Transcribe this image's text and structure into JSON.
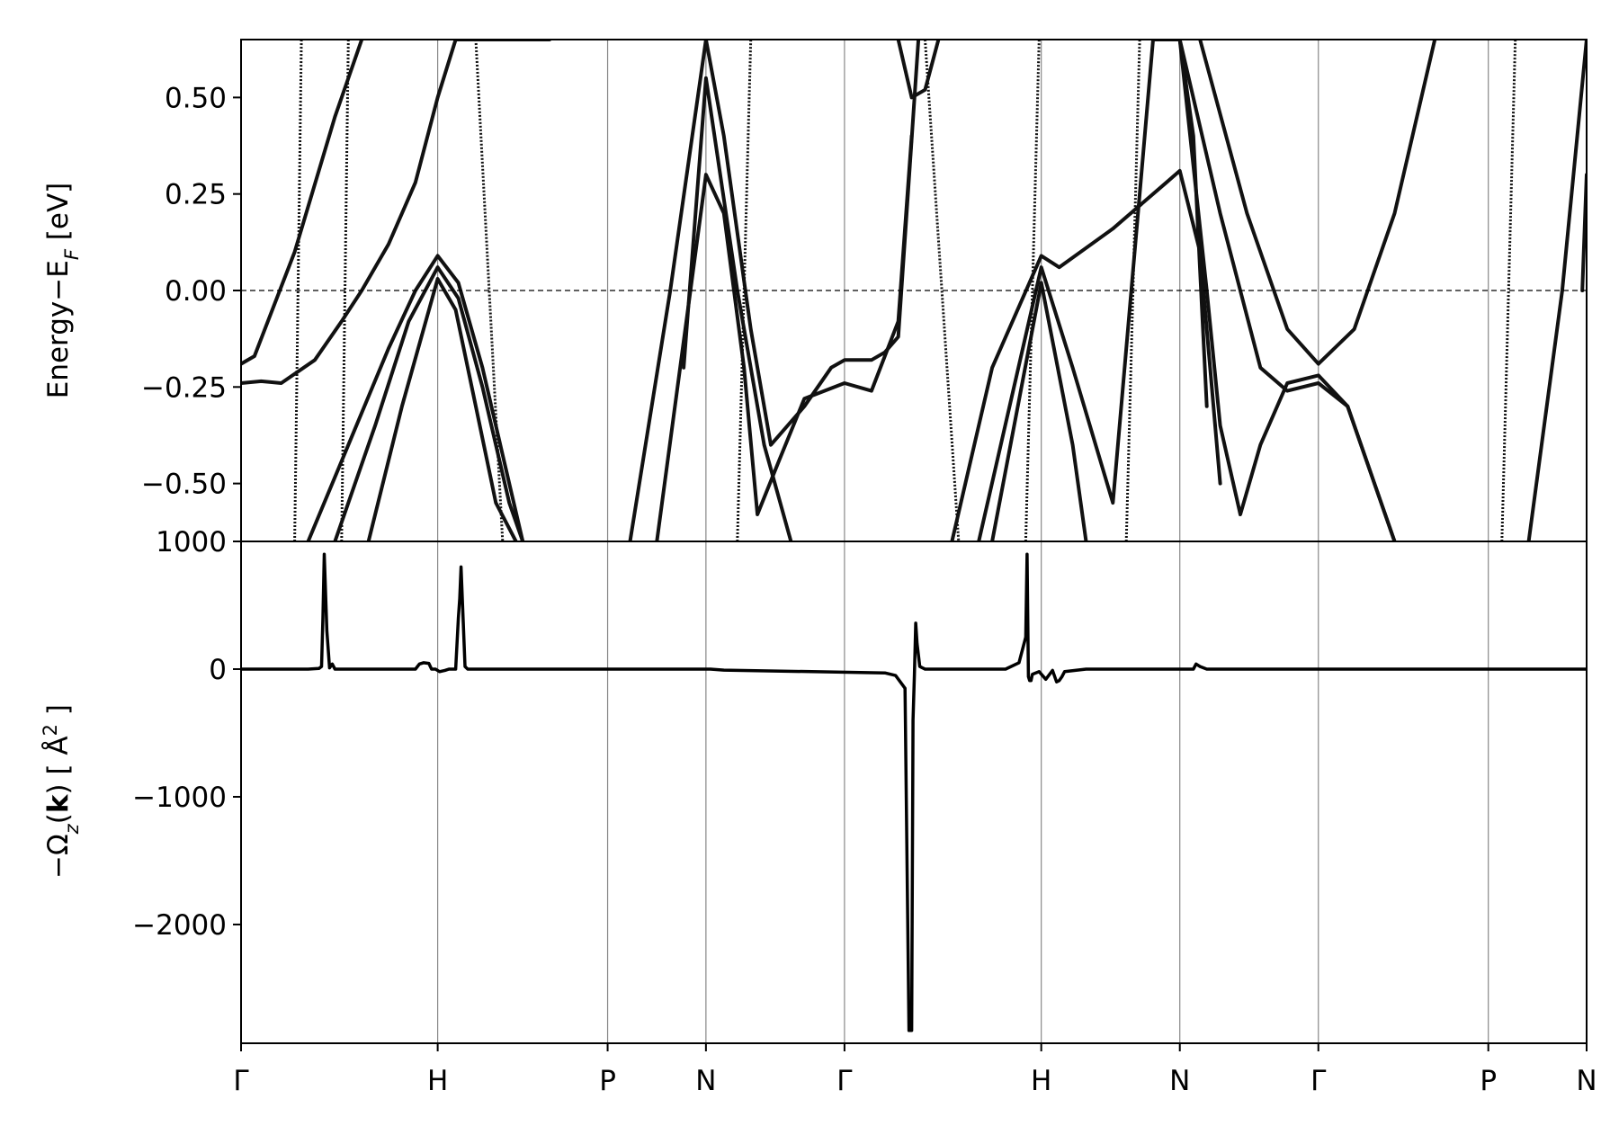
{
  "chart_data": [
    {
      "type": "line",
      "panel": "top",
      "ylabel_main": "Energy−E",
      "ylabel_sub": "F",
      "ylabel_unit": " [eV]",
      "ylim": [
        -0.65,
        0.65
      ],
      "yticks": [
        "0.50",
        "0.25",
        "0.00",
        "−0.25",
        "−0.50"
      ],
      "ytick_values": [
        0.5,
        0.25,
        0.0,
        -0.25,
        -0.5
      ],
      "fermi_level": 0.0,
      "x_tick_positions": [
        0,
        1.466,
        2.733,
        3.466,
        4.499,
        5.966,
        6.999,
        8.032,
        9.299,
        10.032
      ],
      "xlim": [
        0,
        10.032
      ],
      "grid": "vertical lines at high-symmetry points",
      "color": "#111111",
      "series": [
        {
          "x": [
            0,
            0.15,
            0.3,
            0.55,
            0.75,
            0.9,
            1.1,
            1.3,
            1.466,
            1.6,
            1.75,
            1.95,
            2.2,
            2.3
          ],
          "y": [
            -0.24,
            -0.235,
            -0.24,
            -0.18,
            -0.08,
            0.0,
            0.12,
            0.28,
            0.5,
            0.65,
            0.65,
            0.65,
            0.65,
            0.65
          ]
        },
        {
          "x": [
            0,
            0.1,
            0.4,
            0.7,
            0.9
          ],
          "y": [
            -0.19,
            -0.17,
            0.1,
            0.45,
            0.65
          ]
        },
        {
          "x": [
            0.5,
            0.8,
            1.1,
            1.3,
            1.466,
            1.62,
            1.8,
            2.0,
            2.1
          ],
          "y": [
            -0.65,
            -0.4,
            -0.15,
            0.0,
            0.09,
            0.02,
            -0.2,
            -0.5,
            -0.65
          ]
        },
        {
          "x": [
            0.7,
            1.0,
            1.25,
            1.466,
            1.62,
            1.8,
            2.0,
            2.1
          ],
          "y": [
            -0.65,
            -0.35,
            -0.08,
            0.06,
            -0.02,
            -0.25,
            -0.55,
            -0.65
          ]
        },
        {
          "x": [
            0.95,
            1.2,
            1.466,
            1.6,
            1.75,
            1.9,
            2.05
          ],
          "y": [
            -0.65,
            -0.3,
            0.03,
            -0.05,
            -0.3,
            -0.55,
            -0.65
          ]
        },
        {
          "x": [
            2.9,
            3.2,
            3.466,
            3.6,
            3.8,
            3.95,
            4.2,
            4.4,
            4.5,
            4.7,
            4.8,
            4.9,
            5.05
          ],
          "y": [
            -0.65,
            0.0,
            0.65,
            0.4,
            -0.1,
            -0.4,
            -0.3,
            -0.2,
            -0.18,
            -0.18,
            -0.16,
            -0.12,
            0.65
          ]
        },
        {
          "x": [
            3.1,
            3.466,
            3.6,
            3.75,
            3.85,
            4.0,
            4.2,
            4.499,
            4.7,
            4.9,
            5.0
          ],
          "y": [
            -0.65,
            0.3,
            0.2,
            -0.2,
            -0.58,
            -0.45,
            -0.28,
            -0.24,
            -0.26,
            -0.08,
            0.4
          ]
        },
        {
          "x": [
            3.3,
            3.466,
            3.7,
            3.9,
            4.1
          ],
          "y": [
            -0.2,
            0.55,
            0.0,
            -0.4,
            -0.65
          ]
        },
        {
          "x": [
            4.9,
            5.0,
            5.1,
            5.2
          ],
          "y": [
            0.65,
            0.5,
            0.52,
            0.65
          ]
        },
        {
          "x": [
            5.3,
            5.6,
            5.966,
            6.1,
            6.5,
            6.9,
            6.999,
            7.15,
            7.3
          ],
          "y": [
            -0.65,
            -0.2,
            0.09,
            0.06,
            0.16,
            0.28,
            0.31,
            0.1,
            -0.5
          ]
        },
        {
          "x": [
            5.5,
            5.966,
            6.2,
            6.5,
            6.8,
            6.999,
            7.1,
            7.2
          ],
          "y": [
            -0.65,
            0.06,
            -0.2,
            -0.55,
            0.65,
            0.65,
            0.4,
            -0.3
          ]
        },
        {
          "x": [
            5.6,
            5.966,
            6.2,
            6.3
          ],
          "y": [
            -0.65,
            0.02,
            -0.4,
            -0.65
          ]
        },
        {
          "x": [
            6.999,
            7.2,
            7.3,
            7.45,
            7.6,
            7.8,
            8.032,
            8.25,
            8.45,
            8.6
          ],
          "y": [
            0.65,
            0.0,
            -0.35,
            -0.58,
            -0.4,
            -0.24,
            -0.22,
            -0.3,
            -0.5,
            -0.65
          ]
        },
        {
          "x": [
            6.999,
            7.3,
            7.6,
            7.8,
            8.032,
            8.25,
            8.45,
            8.6
          ],
          "y": [
            0.65,
            0.2,
            -0.2,
            -0.26,
            -0.24,
            -0.3,
            -0.5,
            -0.65
          ]
        },
        {
          "x": [
            7.15,
            7.5,
            7.8,
            8.032,
            8.3,
            8.6,
            8.9
          ],
          "y": [
            0.65,
            0.2,
            -0.1,
            -0.19,
            -0.1,
            0.2,
            0.65
          ]
        },
        {
          "x": [
            9.6,
            9.85,
            10.032
          ],
          "y": [
            -0.65,
            0.0,
            0.65
          ]
        },
        {
          "x": [
            10.0,
            10.032
          ],
          "y": [
            0.0,
            0.3
          ]
        }
      ],
      "dotted_series": [
        {
          "x": [
            0.4,
            0.45
          ],
          "y": [
            -0.65,
            0.65
          ]
        },
        {
          "x": [
            0.75,
            0.8
          ],
          "y": [
            -0.65,
            0.65
          ]
        },
        {
          "x": [
            1.75,
            1.95
          ],
          "y": [
            0.65,
            -0.65
          ]
        },
        {
          "x": [
            3.7,
            3.8
          ],
          "y": [
            -0.65,
            0.65
          ]
        },
        {
          "x": [
            5.1,
            5.35
          ],
          "y": [
            0.65,
            -0.65
          ]
        },
        {
          "x": [
            5.85,
            5.95
          ],
          "y": [
            -0.65,
            0.65
          ]
        },
        {
          "x": [
            6.6,
            6.7
          ],
          "y": [
            -0.65,
            0.65
          ]
        },
        {
          "x": [
            9.4,
            9.5
          ],
          "y": [
            -0.65,
            0.65
          ]
        }
      ]
    },
    {
      "type": "line",
      "panel": "bottom",
      "ylabel_main": "−Ω",
      "ylabel_sub": "z",
      "ylabel_bold": "k",
      "ylabel_unit": "  [ Å",
      "ylabel_sup": "2",
      "ylabel_end": " ]",
      "ylim": [
        -2930,
        1000
      ],
      "yticks": [
        "1000",
        "0",
        "−1000",
        "−2000"
      ],
      "ytick_values": [
        1000,
        0,
        -1000,
        -2000
      ],
      "xlabels": [
        "Γ",
        "H",
        "P",
        "N",
        "Γ",
        "H",
        "N",
        "Γ",
        "P",
        "N"
      ],
      "x_tick_positions": [
        0,
        1.466,
        2.733,
        3.466,
        4.499,
        5.966,
        6.999,
        8.032,
        9.299,
        10.032
      ],
      "xlim": [
        0,
        10.032
      ],
      "color": "#000000",
      "series": [
        {
          "x": [
            0,
            0.5,
            0.58,
            0.6,
            0.61,
            0.62,
            0.64,
            0.66,
            0.68,
            0.7,
            1.3,
            1.33,
            1.36,
            1.4,
            1.42,
            1.45,
            1.48,
            1.52,
            1.55,
            1.6,
            1.62,
            1.63,
            1.64,
            1.67,
            1.69,
            1.7,
            3.5,
            3.6,
            4.8,
            4.88,
            4.95,
            4.98,
            5.0,
            5.01,
            5.02,
            5.03,
            5.04,
            5.06,
            5.08,
            5.1,
            5.2,
            5.7,
            5.8,
            5.85,
            5.86,
            5.87,
            5.88,
            5.89,
            5.9,
            5.95,
            6.0,
            6.05,
            6.08,
            6.1,
            6.12,
            6.14,
            6.3,
            7.1,
            7.12,
            7.15,
            7.2,
            10.032
          ],
          "y": [
            0,
            0,
            5,
            20,
            400,
            900,
            300,
            10,
            40,
            0,
            0,
            40,
            50,
            45,
            0,
            0,
            -20,
            -10,
            0,
            0,
            400,
            550,
            800,
            20,
            0,
            0,
            0,
            -8,
            -30,
            -50,
            -150,
            -2830,
            -2830,
            -400,
            -50,
            360,
            200,
            20,
            10,
            0,
            0,
            0,
            50,
            250,
            900,
            -60,
            -90,
            -90,
            -40,
            -20,
            -80,
            -10,
            -100,
            -90,
            -60,
            -20,
            0,
            0,
            40,
            20,
            0,
            0
          ]
        }
      ]
    }
  ]
}
